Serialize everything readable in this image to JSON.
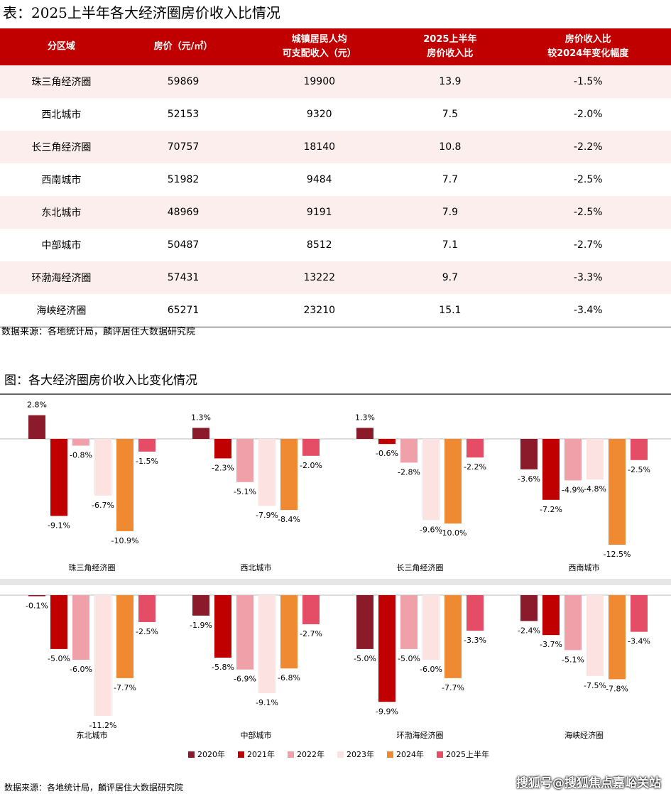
{
  "table_title": "表：2025上半年各大经济圈房价收入比情况",
  "table": {
    "header": [
      "分区域",
      "房价（元/㎡）",
      "城镇居民人均\n可支配收入（元）",
      "2025上半年\n房价收入比",
      "房价收入比\n较2024年变化幅度"
    ],
    "rows": [
      [
        "珠三角经济圈",
        59869,
        19900,
        13.9,
        "-1.5%"
      ],
      [
        "西北城市",
        52153,
        9320,
        7.5,
        "-2.0%"
      ],
      [
        "长三角经济圈",
        70757,
        18140,
        10.8,
        "-2.2%"
      ],
      [
        "西南城市",
        51982,
        9484,
        7.7,
        "-2.5%"
      ],
      [
        "东北城市",
        48969,
        9191,
        7.9,
        "-2.5%"
      ],
      [
        "中部城市",
        50487,
        8512,
        7.1,
        "-2.7%"
      ],
      [
        "环渤海经济圈",
        57431,
        13222,
        9.7,
        "-3.3%"
      ],
      [
        "海峡经济圈",
        65271,
        23210,
        15.1,
        "-3.4%"
      ]
    ]
  },
  "table_source": "数据来源：各地统计局，麟评居住大数据研究院",
  "figure_title": "图：各大经济圈房价收入比变化情况",
  "chart_data": {
    "type": "bar",
    "categories": [
      "珠三角经济圈",
      "西北城市",
      "长三角经济圈",
      "西南城市",
      "东北城市",
      "中部城市",
      "环渤海经济圈",
      "海峡经济圈"
    ],
    "series": [
      {
        "name": "2020年",
        "color": "#8b1a2b",
        "values": [
          2.8,
          1.3,
          1.3,
          -3.6,
          -0.1,
          -1.9,
          -5.0,
          -2.4
        ],
        "value_labels": [
          "2.8%",
          "1.3%",
          "1.3%",
          "-3.6%",
          "-0.1%",
          "-1.9%",
          "-5.0%",
          "-2.4%"
        ]
      },
      {
        "name": "2021年",
        "color": "#c00000",
        "values": [
          -9.1,
          -2.3,
          -0.6,
          -7.2,
          -5.0,
          -5.8,
          -9.9,
          -3.7
        ],
        "value_labels": [
          "-9.1%",
          "-2.3%",
          "-0.6%",
          "-7.2%",
          "-5.0%",
          "-5.8%",
          "-9.9%",
          "-3.7%"
        ]
      },
      {
        "name": "2022年",
        "color": "#f0a0a8",
        "values": [
          -0.8,
          -5.1,
          -2.8,
          -4.9,
          -6.0,
          -6.9,
          -5.0,
          -5.1
        ],
        "value_labels": [
          "-0.8%",
          "-5.1%",
          "-2.8%",
          "-4.9%",
          "-6.0%",
          "-6.9%",
          "-5.0%",
          "-5.1%"
        ]
      },
      {
        "name": "2023年",
        "color": "#fde2e2",
        "values": [
          -6.7,
          -7.9,
          -9.6,
          -4.8,
          -11.2,
          -9.1,
          -6.0,
          -7.5
        ],
        "value_labels": [
          "-6.7%",
          "-7.9%",
          "-9.6%",
          "-4.8%",
          "-11.2%",
          "-9.1%",
          "-6.0%",
          "-7.5%"
        ]
      },
      {
        "name": "2024年",
        "color": "#ef8a33",
        "values": [
          -10.9,
          -8.4,
          -10.0,
          -12.5,
          -7.7,
          -6.8,
          -7.7,
          -7.8
        ],
        "value_labels": [
          "-10.9%",
          "-8.4%",
          "-10.0%",
          "-12.5%",
          "-7.7%",
          "-6.8%",
          "-7.7%",
          "-7.8%"
        ]
      },
      {
        "name": "2025上半年",
        "color": "#e54d66",
        "values": [
          -1.5,
          -2.0,
          -2.2,
          -2.5,
          -2.5,
          -2.7,
          -3.3,
          -3.4
        ],
        "value_labels": [
          "-1.5%",
          "-2.0%",
          "-2.2%",
          "-2.5%",
          "-2.5%",
          "-2.7%",
          "-3.3%",
          "-3.4%"
        ]
      }
    ]
  },
  "figure_source": "数据来源：各地统计局，麟评居住大数据研究院",
  "watermark": "搜狐号@搜狐焦点嘉峪关站"
}
